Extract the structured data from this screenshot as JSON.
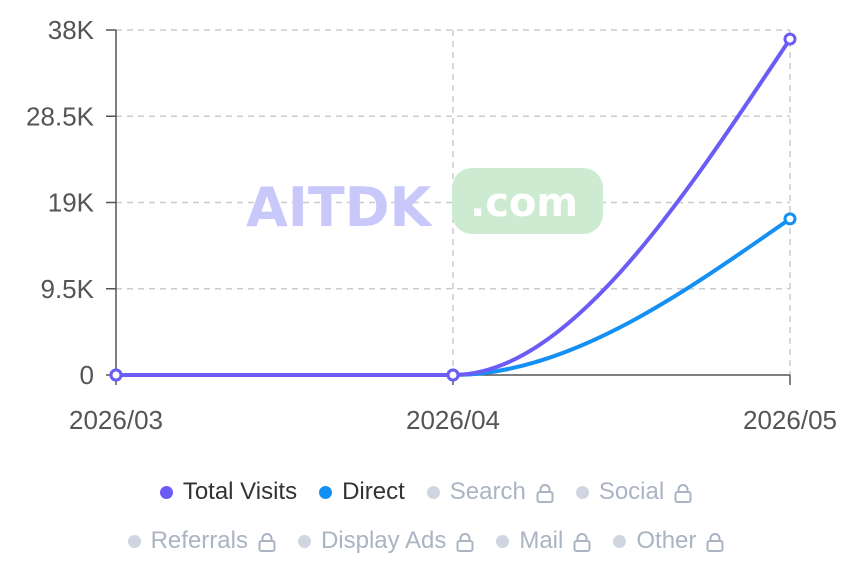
{
  "chart_data": {
    "type": "line",
    "x": [
      "2026/03",
      "2026/04",
      "2026/05"
    ],
    "yticks": [
      "0",
      "9.5K",
      "19K",
      "28.5K",
      "38K"
    ],
    "ylim": [
      0,
      38000
    ],
    "grid": true,
    "legend_position": "bottom",
    "series": [
      {
        "name": "Total Visits",
        "values": [
          0,
          0,
          37000
        ],
        "color": "#6b5cf6"
      },
      {
        "name": "Direct",
        "values": [
          0,
          0,
          17200
        ],
        "color": "#1490f5"
      }
    ]
  },
  "watermark": {
    "text": "AITDK",
    "badge": ".com",
    "text_color": "#c9c8fb",
    "badge_color": "#ccebd1"
  },
  "legend": {
    "row1": [
      {
        "label": "Total Visits",
        "color": "#6b5cf6",
        "locked": false
      },
      {
        "label": "Direct",
        "color": "#1490f5",
        "locked": false
      },
      {
        "label": "Search",
        "color": "#cfd6df",
        "locked": true,
        "icon": "lock-icon"
      },
      {
        "label": "Social",
        "color": "#cfd6df",
        "locked": true,
        "icon": "lock-icon"
      }
    ],
    "row2": [
      {
        "label": "Referrals",
        "color": "#cfd6df",
        "locked": true,
        "icon": "lock-icon"
      },
      {
        "label": "Display Ads",
        "color": "#cfd6df",
        "locked": true,
        "icon": "lock-icon"
      },
      {
        "label": "Mail",
        "color": "#cfd6df",
        "locked": true,
        "icon": "lock-icon"
      },
      {
        "label": "Other",
        "color": "#cfd6df",
        "locked": true,
        "icon": "lock-icon"
      }
    ]
  }
}
